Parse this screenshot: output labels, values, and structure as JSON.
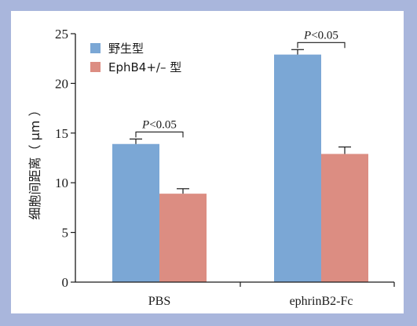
{
  "chart_data": {
    "type": "bar",
    "categories": [
      "PBS",
      "ephrinB2-Fc"
    ],
    "series": [
      {
        "name": "野生型",
        "values": [
          13.9,
          22.9
        ],
        "errors": [
          0.5,
          0.5
        ],
        "color": "#7ba7d5"
      },
      {
        "name": "EphB4+/– 型",
        "values": [
          8.9,
          12.9
        ],
        "errors": [
          0.5,
          0.7
        ],
        "color": "#dc8d82"
      }
    ],
    "ylabel": "细胞间距离（ μm ）",
    "ylim": [
      0,
      25
    ],
    "yticks": [
      "0",
      "5",
      "10",
      "15",
      "20",
      "25"
    ],
    "legend_position": "top-left",
    "grid": false,
    "annotations": [
      {
        "category": "PBS",
        "prefix": "P",
        "text": "<0.05"
      },
      {
        "category": "ephrinB2-Fc",
        "prefix": "P",
        "text": "<0.05"
      }
    ],
    "colors": {
      "panel_background": "#ffffff",
      "frame": "#a9b6dc"
    }
  }
}
